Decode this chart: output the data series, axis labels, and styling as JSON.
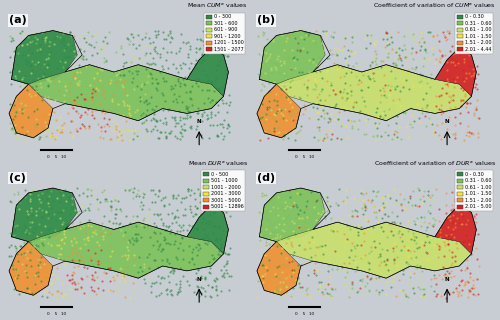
{
  "panels": [
    {
      "label": "(a)",
      "title": "Mean $\\mathit{CUM}^a$ values",
      "legend_entries": [
        {
          "color": "#2d8b44",
          "text": "0 - 300"
        },
        {
          "color": "#7dc15a",
          "text": "301 - 600"
        },
        {
          "color": "#c8e06a",
          "text": "601 - 900"
        },
        {
          "color": "#f5e53a",
          "text": "901 - 1200"
        },
        {
          "color": "#f09030",
          "text": "1201 - 1500"
        },
        {
          "color": "#d42020",
          "text": "1501 - 2077"
        }
      ]
    },
    {
      "label": "(b)",
      "title": "Coefficient of variation of $\\mathit{CUM}^a$ values",
      "legend_entries": [
        {
          "color": "#2d8b44",
          "text": "0 - 0.30"
        },
        {
          "color": "#7dc15a",
          "text": "0.31 - 0.60"
        },
        {
          "color": "#c8e06a",
          "text": "0.61 - 1.00"
        },
        {
          "color": "#f5e53a",
          "text": "1.01 - 1.50"
        },
        {
          "color": "#f09030",
          "text": "1.51 - 2.00"
        },
        {
          "color": "#d42020",
          "text": "2.01 - 4.44"
        }
      ]
    },
    {
      "label": "(c)",
      "title": "Mean $\\mathit{DUR}^a$ values",
      "legend_entries": [
        {
          "color": "#2d8b44",
          "text": "0 - 500"
        },
        {
          "color": "#7dc15a",
          "text": "501 - 1000"
        },
        {
          "color": "#c8e06a",
          "text": "1001 - 2000"
        },
        {
          "color": "#f5e53a",
          "text": "2001 - 3000"
        },
        {
          "color": "#f09030",
          "text": "3001 - 5000"
        },
        {
          "color": "#d42020",
          "text": "5001 - 12896"
        }
      ]
    },
    {
      "label": "(d)",
      "title": "Coefficient of variation of $\\mathit{DUR}^a$ values",
      "legend_entries": [
        {
          "color": "#2d8b44",
          "text": "0 - 0.30"
        },
        {
          "color": "#7dc15a",
          "text": "0.31 - 0.60"
        },
        {
          "color": "#c8e06a",
          "text": "0.61 - 1.00"
        },
        {
          "color": "#f5e53a",
          "text": "1.01 - 1.50"
        },
        {
          "color": "#f09030",
          "text": "1.51 - 2.00"
        },
        {
          "color": "#d42020",
          "text": "2.01 - 5.00"
        }
      ]
    }
  ],
  "background_color": "#d0d8e0",
  "panel_bg_color": "#b8c8d8",
  "map_bg_color": "#c8d8e8"
}
